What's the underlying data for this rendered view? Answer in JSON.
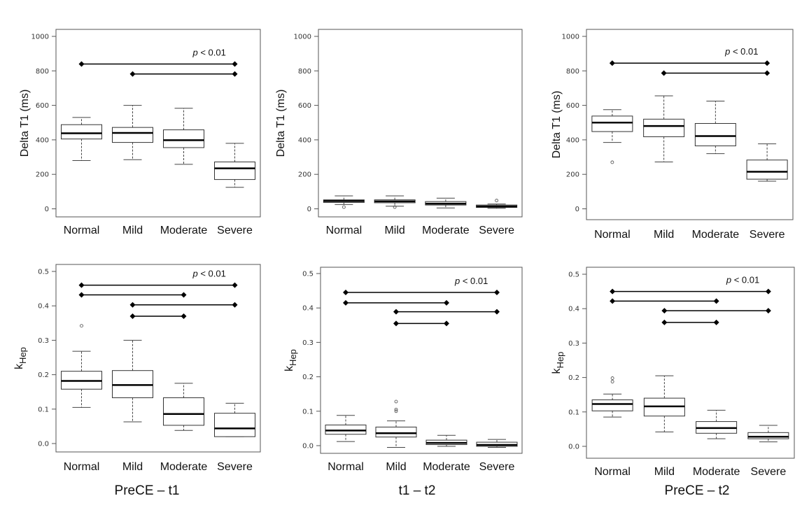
{
  "chart_data": [
    {
      "type": "box",
      "position": "top-left",
      "column": "PreCE – t1",
      "ylabel": "Delta T1 (ms)",
      "ylim": [
        0,
        1000
      ],
      "yticks": [
        "0",
        "200",
        "400",
        "600",
        "800",
        "1000"
      ],
      "categories": [
        "Normal",
        "Mild",
        "Moderate",
        "Severe"
      ],
      "boxes": [
        {
          "whislo": 280,
          "q1": 405,
          "med": 438,
          "q3": 488,
          "whishi": 530,
          "fliers": []
        },
        {
          "whislo": 285,
          "q1": 385,
          "med": 440,
          "q3": 472,
          "whishi": 600,
          "fliers": []
        },
        {
          "whislo": 258,
          "q1": 355,
          "med": 398,
          "q3": 458,
          "whishi": 583,
          "fliers": []
        },
        {
          "whislo": 125,
          "q1": 170,
          "med": 235,
          "q3": 272,
          "whishi": 380,
          "fliers": []
        }
      ],
      "pvalue": {
        "prefix": "p",
        "text": " < 0.01"
      },
      "significance": [
        {
          "from": 0,
          "to": 3,
          "y": 840
        },
        {
          "from": 1,
          "to": 3,
          "y": 782
        }
      ]
    },
    {
      "type": "box",
      "position": "top-middle",
      "column": "t1 – t2",
      "ylabel": "Delta T1 (ms)",
      "ylim": [
        0,
        1000
      ],
      "yticks": [
        "0",
        "200",
        "400",
        "600",
        "800",
        "1000"
      ],
      "categories": [
        "Normal",
        "Mild",
        "Moderate",
        "Severe"
      ],
      "boxes": [
        {
          "whislo": 25,
          "q1": 37,
          "med": 45,
          "q3": 52,
          "whishi": 75,
          "fliers": [
            10
          ]
        },
        {
          "whislo": 15,
          "q1": 35,
          "med": 43,
          "q3": 52,
          "whishi": 75,
          "fliers": [
            10
          ]
        },
        {
          "whislo": 5,
          "q1": 22,
          "med": 30,
          "q3": 42,
          "whishi": 62,
          "fliers": []
        },
        {
          "whislo": 3,
          "q1": 8,
          "med": 14,
          "q3": 22,
          "whishi": 28,
          "fliers": [
            48
          ]
        }
      ],
      "pvalue": null,
      "significance": []
    },
    {
      "type": "box",
      "position": "top-right",
      "column": "PreCE – t2",
      "ylabel": "Delta T1 (ms)",
      "ylim": [
        0,
        1000
      ],
      "yticks": [
        "0",
        "200",
        "400",
        "600",
        "800",
        "1000"
      ],
      "categories": [
        "Normal",
        "Mild",
        "Moderate",
        "Severe"
      ],
      "boxes": [
        {
          "whislo": 385,
          "q1": 448,
          "med": 500,
          "q3": 538,
          "whishi": 575,
          "fliers": [
            270
          ]
        },
        {
          "whislo": 272,
          "q1": 418,
          "med": 480,
          "q3": 520,
          "whishi": 655,
          "fliers": []
        },
        {
          "whislo": 320,
          "q1": 365,
          "med": 422,
          "q3": 495,
          "whishi": 625,
          "fliers": []
        },
        {
          "whislo": 160,
          "q1": 172,
          "med": 215,
          "q3": 283,
          "whishi": 377,
          "fliers": []
        }
      ],
      "pvalue": {
        "prefix": "p",
        "text": " < 0.01"
      },
      "significance": [
        {
          "from": 0,
          "to": 3,
          "y": 845
        },
        {
          "from": 1,
          "to": 3,
          "y": 787
        }
      ]
    },
    {
      "type": "box",
      "position": "bottom-left",
      "column": "PreCE – t1",
      "ylabel_main": "k",
      "ylabel_sub": "Hep",
      "ylim": [
        0,
        0.5
      ],
      "yticks": [
        "0.0",
        "0.1",
        "0.2",
        "0.3",
        "0.4",
        "0.5"
      ],
      "categories": [
        "Normal",
        "Mild",
        "Moderate",
        "Severe"
      ],
      "boxes": [
        {
          "whislo": 0.105,
          "q1": 0.158,
          "med": 0.182,
          "q3": 0.21,
          "whishi": 0.268,
          "fliers": [
            0.342
          ]
        },
        {
          "whislo": 0.063,
          "q1": 0.133,
          "med": 0.17,
          "q3": 0.212,
          "whishi": 0.3,
          "fliers": []
        },
        {
          "whislo": 0.038,
          "q1": 0.053,
          "med": 0.086,
          "q3": 0.133,
          "whishi": 0.175,
          "fliers": []
        },
        {
          "whislo": 0.02,
          "q1": 0.02,
          "med": 0.044,
          "q3": 0.088,
          "whishi": 0.117,
          "fliers": []
        }
      ],
      "pvalue": {
        "prefix": "p",
        "text": " < 0.01"
      },
      "significance": [
        {
          "from": 0,
          "to": 3,
          "y": 0.46
        },
        {
          "from": 0,
          "to": 2,
          "y": 0.432
        },
        {
          "from": 1,
          "to": 3,
          "y": 0.403
        },
        {
          "from": 1,
          "to": 2,
          "y": 0.37
        }
      ]
    },
    {
      "type": "box",
      "position": "bottom-middle",
      "column": "t1 – t2",
      "ylabel_main": "k",
      "ylabel_sub": "Hep",
      "ylim": [
        0,
        0.5
      ],
      "yticks": [
        "0.0",
        "0.1",
        "0.2",
        "0.3",
        "0.4",
        "0.5"
      ],
      "categories": [
        "Normal",
        "Mild",
        "Moderate",
        "Severe"
      ],
      "boxes": [
        {
          "whislo": 0.012,
          "q1": 0.033,
          "med": 0.044,
          "q3": 0.06,
          "whishi": 0.088,
          "fliers": []
        },
        {
          "whislo": -0.005,
          "q1": 0.025,
          "med": 0.036,
          "q3": 0.054,
          "whishi": 0.072,
          "fliers": [
            0.1,
            0.105,
            0.128
          ]
        },
        {
          "whislo": -0.002,
          "q1": 0.003,
          "med": 0.008,
          "q3": 0.016,
          "whishi": 0.03,
          "fliers": []
        },
        {
          "whislo": -0.005,
          "q1": -0.002,
          "med": 0.002,
          "q3": 0.01,
          "whishi": 0.018,
          "fliers": []
        }
      ],
      "pvalue": {
        "prefix": "p",
        "text": " < 0.01"
      },
      "significance": [
        {
          "from": 0,
          "to": 3,
          "y": 0.445
        },
        {
          "from": 0,
          "to": 2,
          "y": 0.415
        },
        {
          "from": 1,
          "to": 3,
          "y": 0.389
        },
        {
          "from": 1,
          "to": 2,
          "y": 0.355
        }
      ]
    },
    {
      "type": "box",
      "position": "bottom-right",
      "column": "PreCE – t2",
      "ylabel_main": "k",
      "ylabel_sub": "Hep",
      "ylim": [
        0,
        0.5
      ],
      "yticks": [
        "0.0",
        "0.1",
        "0.2",
        "0.3",
        "0.4",
        "0.5"
      ],
      "categories": [
        "Normal",
        "Mild",
        "Moderate",
        "Severe"
      ],
      "boxes": [
        {
          "whislo": 0.085,
          "q1": 0.103,
          "med": 0.123,
          "q3": 0.135,
          "whishi": 0.152,
          "fliers": [
            0.188,
            0.198
          ]
        },
        {
          "whislo": 0.042,
          "q1": 0.088,
          "med": 0.116,
          "q3": 0.14,
          "whishi": 0.205,
          "fliers": []
        },
        {
          "whislo": 0.022,
          "q1": 0.038,
          "med": 0.053,
          "q3": 0.072,
          "whishi": 0.105,
          "fliers": []
        },
        {
          "whislo": 0.013,
          "q1": 0.022,
          "med": 0.028,
          "q3": 0.04,
          "whishi": 0.061,
          "fliers": []
        }
      ],
      "pvalue": {
        "prefix": "p",
        "text": " < 0.01"
      },
      "significance": [
        {
          "from": 0,
          "to": 3,
          "y": 0.45
        },
        {
          "from": 0,
          "to": 2,
          "y": 0.422
        },
        {
          "from": 1,
          "to": 3,
          "y": 0.394
        },
        {
          "from": 1,
          "to": 2,
          "y": 0.36
        }
      ]
    }
  ],
  "column_labels": [
    "PreCE – t1",
    "t1 – t2",
    "PreCE – t2"
  ]
}
